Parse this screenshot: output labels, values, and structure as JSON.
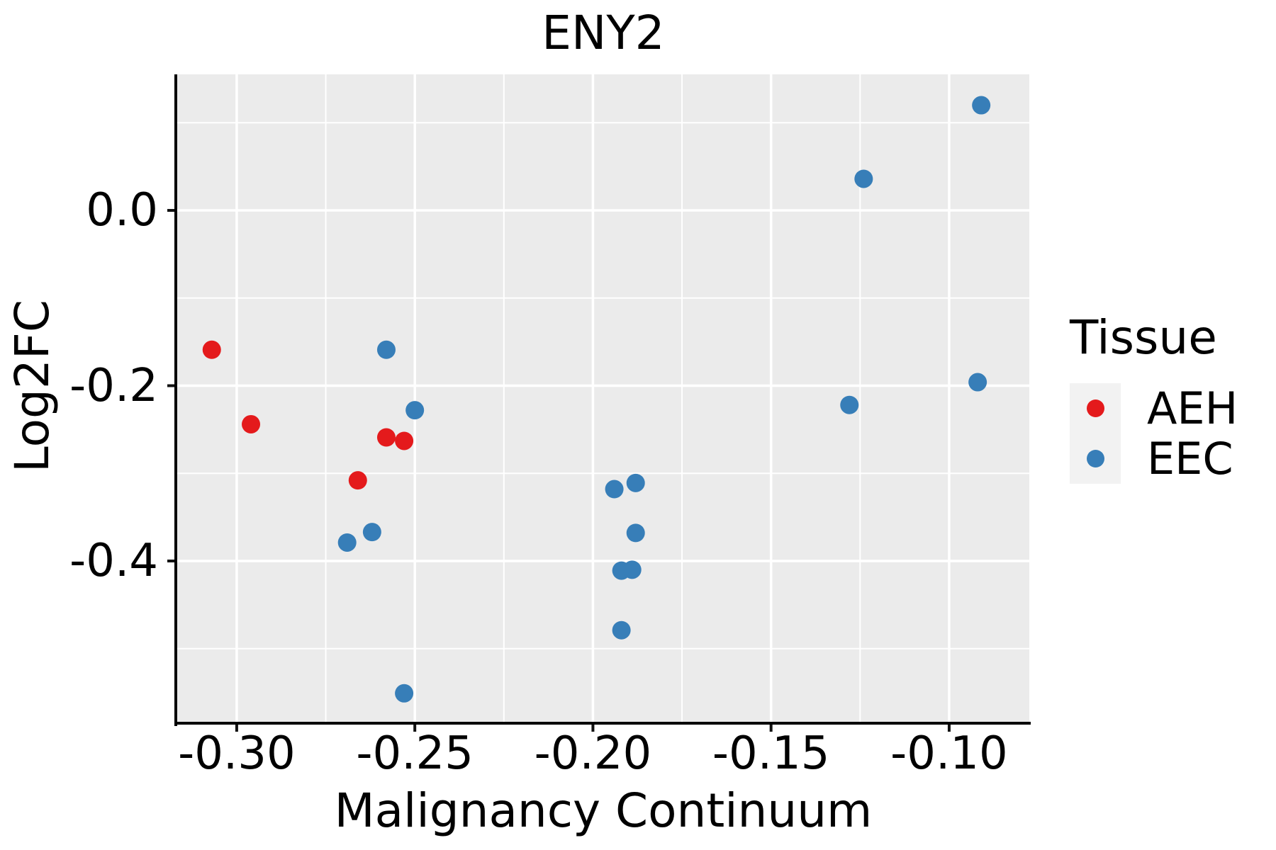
{
  "title": "ENY2",
  "axes": {
    "x_label": "Malignancy Continuum",
    "y_label": "Log2FC"
  },
  "legend": {
    "title": "Tissue",
    "items": [
      {
        "label": "AEH",
        "color": "#E41A1C"
      },
      {
        "label": "EEC",
        "color": "#377EB8"
      }
    ]
  },
  "colors": {
    "panel_bg": "#EBEBEB",
    "grid": "#FFFFFF",
    "axis_line": "#000000",
    "tick": "#111111",
    "text": "#000000",
    "legend_key_bg": "#F2F2F2",
    "aeh": "#E41A1C",
    "eec": "#377EB8"
  },
  "chart_data": {
    "type": "scatter",
    "title": "ENY2",
    "xlabel": "Malignancy Continuum",
    "ylabel": "Log2FC",
    "xlim": [
      -0.3167,
      -0.0775
    ],
    "ylim": [
      -0.5851,
      0.1552
    ],
    "x_major_ticks": [
      -0.3,
      -0.25,
      -0.2,
      -0.15,
      -0.1
    ],
    "x_tick_labels": [
      "-0.30",
      "-0.25",
      "-0.20",
      "-0.15",
      "-0.10"
    ],
    "x_minor_ticks": [
      -0.275,
      -0.225,
      -0.175,
      -0.125
    ],
    "y_major_ticks": [
      0.0,
      -0.2,
      -0.4
    ],
    "y_tick_labels": [
      "0.0",
      "-0.2",
      "-0.4"
    ],
    "y_minor_ticks": [
      0.1,
      -0.1,
      -0.3,
      -0.5
    ],
    "grid": true,
    "legend_position": "right",
    "legend_title": "Tissue",
    "series": [
      {
        "name": "AEH",
        "color": "#E41A1C",
        "points": [
          [
            -0.307,
            -0.159
          ],
          [
            -0.296,
            -0.244
          ],
          [
            -0.258,
            -0.259
          ],
          [
            -0.253,
            -0.263
          ],
          [
            -0.266,
            -0.308
          ]
        ]
      },
      {
        "name": "EEC",
        "color": "#377EB8",
        "points": [
          [
            -0.258,
            -0.159
          ],
          [
            -0.25,
            -0.228
          ],
          [
            -0.269,
            -0.379
          ],
          [
            -0.262,
            -0.367
          ],
          [
            -0.253,
            -0.551
          ],
          [
            -0.194,
            -0.318
          ],
          [
            -0.188,
            -0.311
          ],
          [
            -0.188,
            -0.368
          ],
          [
            -0.192,
            -0.411
          ],
          [
            -0.189,
            -0.41
          ],
          [
            -0.192,
            -0.479
          ],
          [
            -0.124,
            0.036
          ],
          [
            -0.128,
            -0.222
          ],
          [
            -0.091,
            0.12
          ],
          [
            -0.092,
            -0.196
          ]
        ]
      }
    ]
  }
}
